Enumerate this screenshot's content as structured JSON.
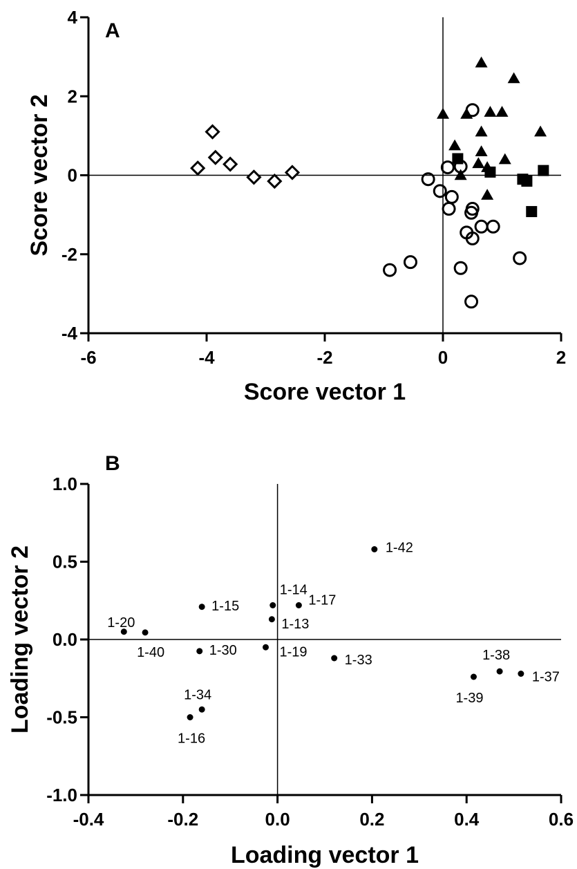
{
  "chart_data": [
    {
      "type": "scatter",
      "panel_label": "A",
      "xlabel": "Score vector 1",
      "ylabel": "Score vector 2",
      "xlim": [
        -6,
        2
      ],
      "ylim": [
        -4,
        4
      ],
      "xticks": [
        "-6",
        "-4",
        "-2",
        "0",
        "2"
      ],
      "yticks": [
        "4",
        "2",
        "0",
        "-2",
        "-4"
      ],
      "reference_lines": "x=0 and y=0",
      "grid": false,
      "series": [
        {
          "marker": "diamond-open",
          "points": [
            [
              -4.15,
              0.18
            ],
            [
              -3.9,
              1.1
            ],
            [
              -3.85,
              0.45
            ],
            [
              -3.6,
              0.28
            ],
            [
              -3.2,
              -0.05
            ],
            [
              -2.85,
              -0.15
            ],
            [
              -2.55,
              0.07
            ]
          ]
        },
        {
          "marker": "circle-open",
          "points": [
            [
              0.5,
              1.65
            ],
            [
              0.08,
              0.2
            ],
            [
              0.3,
              0.22
            ],
            [
              -0.25,
              -0.1
            ],
            [
              -0.05,
              -0.4
            ],
            [
              0.15,
              -0.55
            ],
            [
              0.1,
              -0.85
            ],
            [
              0.5,
              -0.85
            ],
            [
              0.48,
              -0.95
            ],
            [
              0.65,
              -1.3
            ],
            [
              0.85,
              -1.3
            ],
            [
              0.4,
              -1.45
            ],
            [
              0.5,
              -1.6
            ],
            [
              1.3,
              -2.1
            ],
            [
              -0.55,
              -2.2
            ],
            [
              -0.9,
              -2.4
            ],
            [
              0.3,
              -2.35
            ],
            [
              0.48,
              -3.2
            ]
          ]
        },
        {
          "marker": "triangle-filled",
          "points": [
            [
              0.65,
              2.85
            ],
            [
              1.2,
              2.45
            ],
            [
              0.0,
              1.55
            ],
            [
              0.4,
              1.55
            ],
            [
              0.8,
              1.6
            ],
            [
              1.0,
              1.6
            ],
            [
              0.65,
              1.1
            ],
            [
              1.65,
              1.1
            ],
            [
              0.2,
              0.75
            ],
            [
              0.65,
              0.6
            ],
            [
              1.05,
              0.4
            ],
            [
              0.6,
              0.3
            ],
            [
              0.75,
              0.2
            ],
            [
              0.3,
              0.0
            ],
            [
              0.75,
              -0.5
            ]
          ]
        },
        {
          "marker": "square-filled",
          "points": [
            [
              0.25,
              0.42
            ],
            [
              0.8,
              0.08
            ],
            [
              1.35,
              -0.1
            ],
            [
              1.42,
              -0.15
            ],
            [
              1.7,
              0.12
            ],
            [
              1.5,
              -0.92
            ]
          ]
        }
      ]
    },
    {
      "type": "scatter",
      "panel_label": "B",
      "xlabel": "Loading  vector  1",
      "ylabel": "Loading vector 2",
      "xlim": [
        -0.4,
        0.6
      ],
      "ylim": [
        -1.0,
        1.0
      ],
      "xticks": [
        "-0.4",
        "-0.2",
        "0.0",
        "0.2",
        "0.4",
        "0.6"
      ],
      "yticks": [
        "1.0",
        "0.5",
        "0.0",
        "-0.5",
        "-1.0"
      ],
      "reference_lines": "x=0 and y=0",
      "grid": false,
      "points": [
        {
          "label": "1-42",
          "x": 0.205,
          "y": 0.58
        },
        {
          "label": "1-14",
          "x": -0.01,
          "y": 0.22
        },
        {
          "label": "1-17",
          "x": 0.045,
          "y": 0.22
        },
        {
          "label": "1-15",
          "x": -0.16,
          "y": 0.21
        },
        {
          "label": "1-13",
          "x": -0.012,
          "y": 0.13
        },
        {
          "label": "1-20",
          "x": -0.325,
          "y": 0.05
        },
        {
          "label": "1-40",
          "x": -0.28,
          "y": 0.045
        },
        {
          "label": "1-30",
          "x": -0.165,
          "y": -0.075
        },
        {
          "label": "1-19",
          "x": -0.025,
          "y": -0.05
        },
        {
          "label": "1-33",
          "x": 0.12,
          "y": -0.12
        },
        {
          "label": "1-38",
          "x": 0.47,
          "y": -0.205
        },
        {
          "label": "1-37",
          "x": 0.515,
          "y": -0.22
        },
        {
          "label": "1-39",
          "x": 0.415,
          "y": -0.24
        },
        {
          "label": "1-34",
          "x": -0.16,
          "y": -0.45
        },
        {
          "label": "1-16",
          "x": -0.185,
          "y": -0.5
        }
      ]
    }
  ]
}
